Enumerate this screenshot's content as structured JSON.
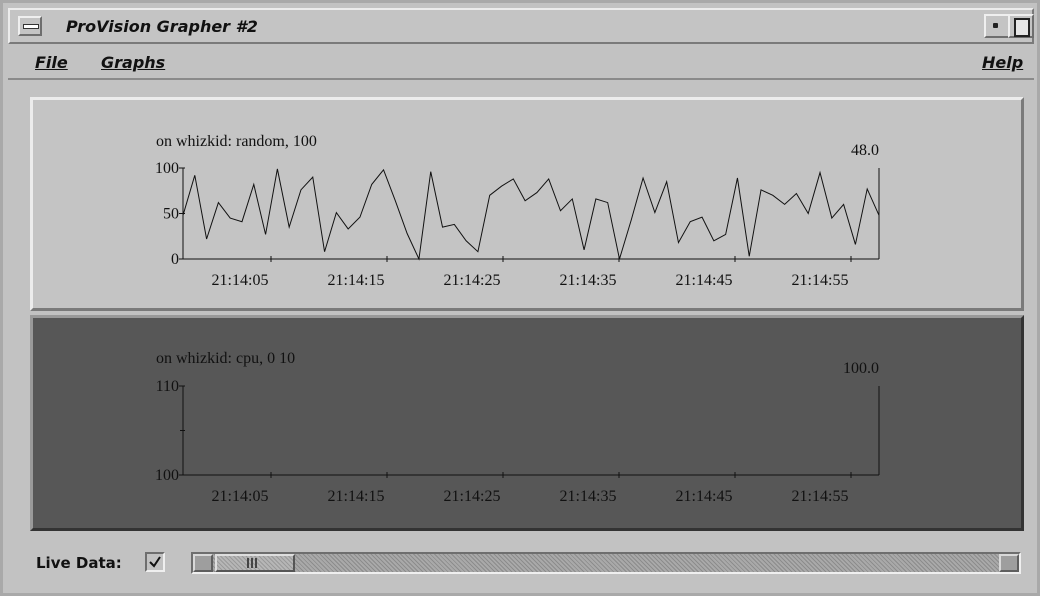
{
  "window": {
    "title": "ProVision Grapher #2"
  },
  "menubar": {
    "file_label": "File",
    "graphs_label": "Graphs",
    "help_label": "Help"
  },
  "graph1": {
    "label": "on whizkid: random, 100",
    "current_value": "48.0"
  },
  "graph2": {
    "label": "on whizkid: cpu, 0 10",
    "current_value": "100.0"
  },
  "bottom": {
    "live_label": "Live Data:",
    "live_checked": true
  },
  "colors": {
    "panel_light": "#c4c4c4",
    "panel_dark": "#575757"
  },
  "chart_data": [
    {
      "type": "line",
      "title": "on whizkid: random, 100",
      "current_label": "48.0",
      "ylim": [
        0,
        100
      ],
      "yticks": [
        "0",
        "50",
        "100"
      ],
      "xticks": [
        "21:14:05",
        "21:14:15",
        "21:14:25",
        "21:14:35",
        "21:14:45",
        "21:14:55"
      ],
      "grid": false,
      "series": [
        {
          "values": [
            48,
            92,
            22,
            62,
            45,
            41,
            82,
            27,
            99,
            35,
            76,
            90,
            8,
            51,
            33,
            46,
            82,
            98,
            64,
            28,
            0,
            96,
            35,
            38,
            20,
            8,
            70,
            80,
            88,
            64,
            73,
            88,
            53,
            66,
            10,
            66,
            62,
            0,
            43,
            89,
            51,
            85,
            18,
            41,
            46,
            20,
            27,
            89,
            3,
            76,
            70,
            60,
            72,
            50,
            95,
            45,
            60,
            16,
            77,
            48
          ]
        }
      ]
    },
    {
      "type": "line",
      "title": "on whizkid: cpu, 0 10",
      "current_label": "100.0",
      "ylim": [
        100,
        110
      ],
      "yticks": [
        "100",
        "110"
      ],
      "xticks": [
        "21:14:05",
        "21:14:15",
        "21:14:25",
        "21:14:35",
        "21:14:45",
        "21:14:55"
      ],
      "grid": false,
      "series": [
        {
          "values": [
            100,
            100,
            100,
            100,
            100,
            100,
            100,
            100,
            100,
            100,
            100,
            100,
            100,
            100,
            100,
            100,
            100,
            100,
            100,
            100,
            100,
            100,
            100,
            100,
            100,
            100,
            100,
            100,
            100,
            100,
            100,
            100,
            100,
            100,
            100,
            100,
            100,
            100,
            100,
            100,
            100,
            100,
            100,
            100,
            100,
            100,
            100,
            100,
            100,
            100,
            100,
            100,
            100,
            100,
            100,
            100,
            100,
            100,
            100,
            100
          ]
        }
      ]
    }
  ]
}
